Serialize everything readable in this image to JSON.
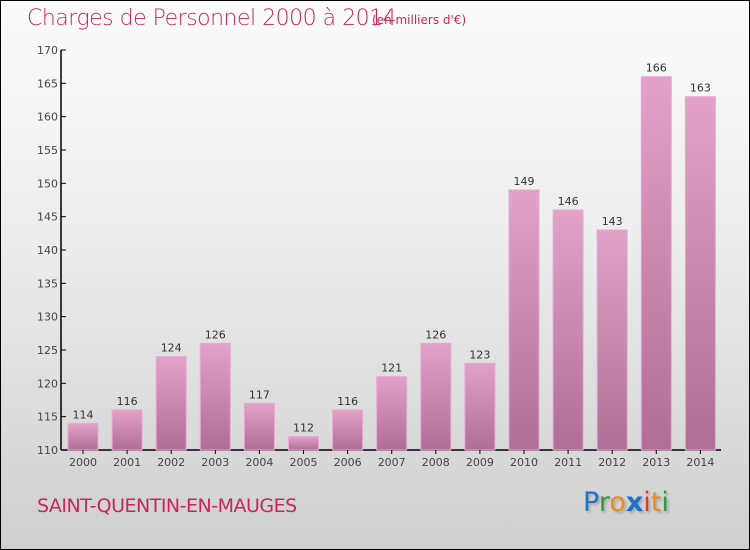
{
  "chart_data": {
    "type": "bar",
    "title": "Charges de Personnel 2000 à 2014",
    "subtitle": "(en milliers d'€)",
    "categories": [
      "2000",
      "2001",
      "2002",
      "2003",
      "2004",
      "2005",
      "2006",
      "2007",
      "2008",
      "2009",
      "2010",
      "2011",
      "2012",
      "2013",
      "2014"
    ],
    "values": [
      114,
      116,
      124,
      126,
      117,
      112,
      116,
      121,
      126,
      123,
      149,
      146,
      143,
      166,
      163
    ],
    "ylim": [
      110,
      170
    ],
    "yticks": [
      110,
      115,
      120,
      125,
      130,
      135,
      140,
      145,
      150,
      155,
      160,
      165,
      170
    ],
    "xlabel": "",
    "ylabel": "",
    "grid": false,
    "bar_color": "#d994bd"
  },
  "commune": "SAINT-QUENTIN-EN-MAUGES",
  "logo": {
    "letters": [
      "P",
      "r",
      "o",
      "x",
      "i",
      "t",
      "i"
    ],
    "colors": [
      "#1a73c9",
      "#2f9a3a",
      "#f08a12",
      "#1a73c9",
      "#e8371c",
      "#f08a12",
      "#2f9a3a"
    ]
  }
}
